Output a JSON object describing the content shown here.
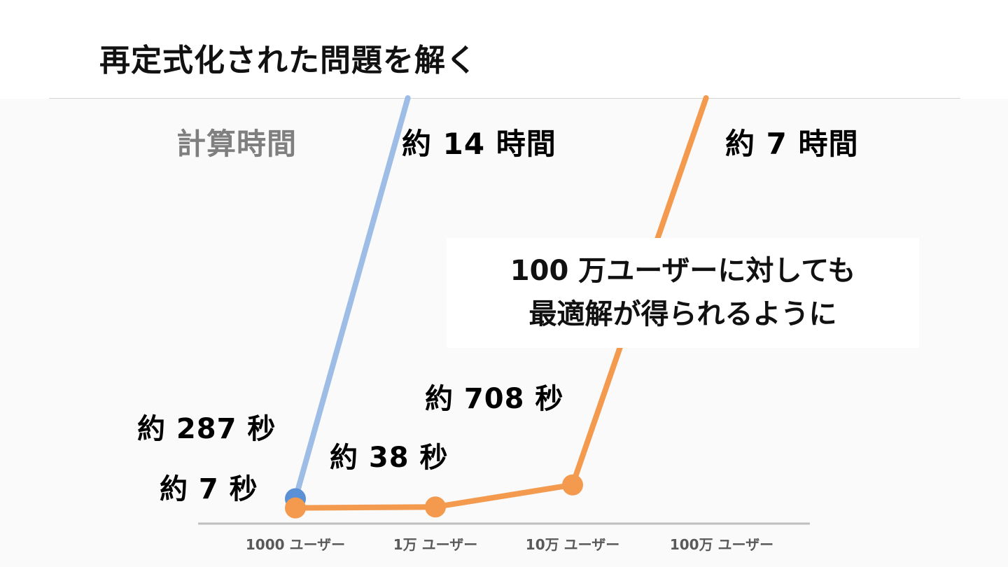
{
  "slide": {
    "title": "再定式化された問題を解く",
    "callout": [
      "100 万ユーザーに対しても",
      "最適解が得られるように"
    ]
  },
  "chart_data": {
    "type": "line",
    "categories": [
      "1000 ユーザー",
      "1万 ユーザー",
      "10万 ユーザー",
      "100万 ユーザー"
    ],
    "ylabel": "計算時間",
    "colors": {
      "blue": "#5b8fd6",
      "blue_light": "#9dbde6",
      "orange": "#f39a4e",
      "axis_label": "#7f7f7f"
    },
    "series": [
      {
        "color": "#5b8fd6",
        "values_seconds": [
          287,
          50400,
          null,
          null
        ],
        "labels": [
          "約 287 秒",
          "約 14 時間"
        ]
      },
      {
        "color": "#f39a4e",
        "values_seconds": [
          7,
          38,
          708,
          25200
        ],
        "labels": [
          "約 7 秒",
          "約 38 秒",
          "約 708 秒",
          "約 7 時間"
        ]
      }
    ]
  }
}
